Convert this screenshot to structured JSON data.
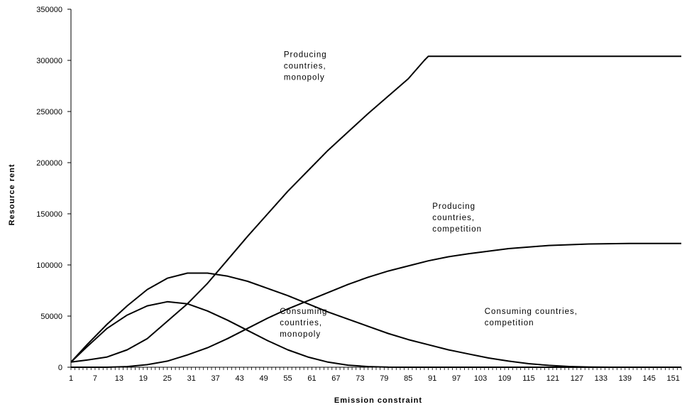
{
  "chart_data": {
    "type": "line",
    "title": "",
    "xlabel": "Emission constraint",
    "ylabel": "Resource rent",
    "xlim": [
      1,
      153
    ],
    "ylim": [
      0,
      350000
    ],
    "y_ticks": [
      "0",
      "50000",
      "100000",
      "150000",
      "200000",
      "250000",
      "300000",
      "350000"
    ],
    "x_ticks": [
      "1",
      "7",
      "13",
      "19",
      "25",
      "31",
      "37",
      "43",
      "49",
      "55",
      "61",
      "67",
      "73",
      "79",
      "85",
      "91",
      "97",
      "103",
      "109",
      "115",
      "121",
      "127",
      "133",
      "139",
      "145",
      "151"
    ],
    "grid": false,
    "legend": "none",
    "line_color": "#000000",
    "series": [
      {
        "label": "Producing countries, monopoly",
        "x": [
          1,
          5,
          10,
          15,
          20,
          25,
          30,
          35,
          40,
          45,
          50,
          55,
          60,
          65,
          70,
          75,
          80,
          85,
          89,
          90,
          153
        ],
        "values": [
          5000,
          7000,
          10000,
          17000,
          28000,
          45000,
          62000,
          82000,
          105000,
          128000,
          150000,
          172000,
          192000,
          212000,
          230000,
          248000,
          265000,
          282000,
          300000,
          304000,
          304000
        ]
      },
      {
        "label": "Producing countries, competition",
        "x": [
          1,
          10,
          15,
          20,
          25,
          30,
          35,
          40,
          45,
          50,
          55,
          60,
          65,
          70,
          75,
          80,
          85,
          90,
          95,
          100,
          110,
          120,
          130,
          140,
          153
        ],
        "values": [
          0,
          0,
          600,
          2500,
          6000,
          12000,
          19000,
          28000,
          38000,
          48000,
          57000,
          65000,
          73000,
          81000,
          88000,
          94000,
          99000,
          104000,
          108000,
          111000,
          116000,
          119000,
          120500,
          121000,
          121000
        ]
      },
      {
        "label": "Consuming countries, monopoly",
        "x": [
          1,
          5,
          10,
          15,
          20,
          25,
          30,
          35,
          40,
          45,
          50,
          55,
          60,
          65,
          70,
          75,
          80,
          85,
          90,
          153
        ],
        "values": [
          5000,
          20000,
          38000,
          51000,
          60000,
          64000,
          62000,
          55000,
          46000,
          36000,
          26000,
          17000,
          10000,
          5000,
          2000,
          600,
          100,
          0,
          0,
          0
        ]
      },
      {
        "label": "Consuming countries, competition",
        "x": [
          1,
          5,
          10,
          15,
          20,
          25,
          30,
          35,
          40,
          45,
          50,
          55,
          60,
          65,
          70,
          75,
          80,
          85,
          90,
          95,
          100,
          105,
          110,
          115,
          120,
          125,
          130,
          135,
          140,
          153
        ],
        "values": [
          5000,
          22000,
          42000,
          60000,
          76000,
          87000,
          92000,
          92000,
          89000,
          84000,
          77000,
          70000,
          62000,
          54000,
          47000,
          40000,
          33000,
          27000,
          22000,
          17000,
          13000,
          9000,
          6000,
          3500,
          1800,
          700,
          200,
          0,
          0,
          0
        ]
      }
    ],
    "annotations": [
      {
        "lines": [
          "Producing",
          "countries,",
          "monopoly"
        ],
        "x": 54,
        "y": 303000
      },
      {
        "lines": [
          "Producing",
          "countries,",
          "competition"
        ],
        "x": 91,
        "y": 155000
      },
      {
        "lines": [
          "Consuming",
          "countries,",
          "monopoly"
        ],
        "x": 53,
        "y": 52000
      },
      {
        "lines": [
          "Consuming countries,",
          "competition"
        ],
        "x": 104,
        "y": 52000
      }
    ]
  }
}
